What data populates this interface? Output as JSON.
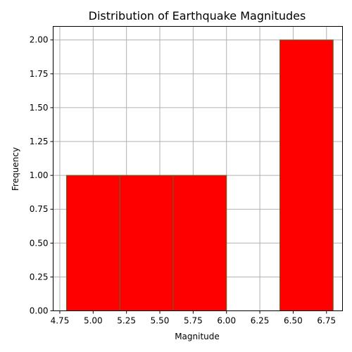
{
  "chart_data": {
    "type": "bar",
    "title": "Distribution of Earthquake Magnitudes",
    "xlabel": "Magnitude",
    "ylabel": "Frequency",
    "xlim": [
      4.7,
      6.87
    ],
    "ylim": [
      0,
      2.1
    ],
    "grid": true,
    "bins": [
      {
        "start": 4.8,
        "end": 5.2,
        "value": 1
      },
      {
        "start": 5.2,
        "end": 5.6,
        "value": 1
      },
      {
        "start": 5.6,
        "end": 6.0,
        "value": 1
      },
      {
        "start": 6.0,
        "end": 6.4,
        "value": 0
      },
      {
        "start": 6.4,
        "end": 6.8,
        "value": 2
      }
    ],
    "x_ticks": [
      {
        "value": 4.75,
        "label": "4.75"
      },
      {
        "value": 5.0,
        "label": "5.00"
      },
      {
        "value": 5.25,
        "label": "5.25"
      },
      {
        "value": 5.5,
        "label": "5.50"
      },
      {
        "value": 5.75,
        "label": "5.75"
      },
      {
        "value": 6.0,
        "label": "6.00"
      },
      {
        "value": 6.25,
        "label": "6.25"
      },
      {
        "value": 6.5,
        "label": "6.50"
      },
      {
        "value": 6.75,
        "label": "6.75"
      }
    ],
    "y_ticks": [
      {
        "value": 0,
        "label": "0.00"
      },
      {
        "value": 0.25,
        "label": "0.25"
      },
      {
        "value": 0.5,
        "label": "0.50"
      },
      {
        "value": 0.75,
        "label": "0.75"
      },
      {
        "value": 1.0,
        "label": "1.00"
      },
      {
        "value": 1.25,
        "label": "1.25"
      },
      {
        "value": 1.5,
        "label": "1.50"
      },
      {
        "value": 1.75,
        "label": "1.75"
      },
      {
        "value": 2.0,
        "label": "2.00"
      }
    ],
    "colors": {
      "bar_fill": "#ff0000",
      "bar_edge": "#556b2f",
      "grid": "#b0b0b0"
    }
  }
}
